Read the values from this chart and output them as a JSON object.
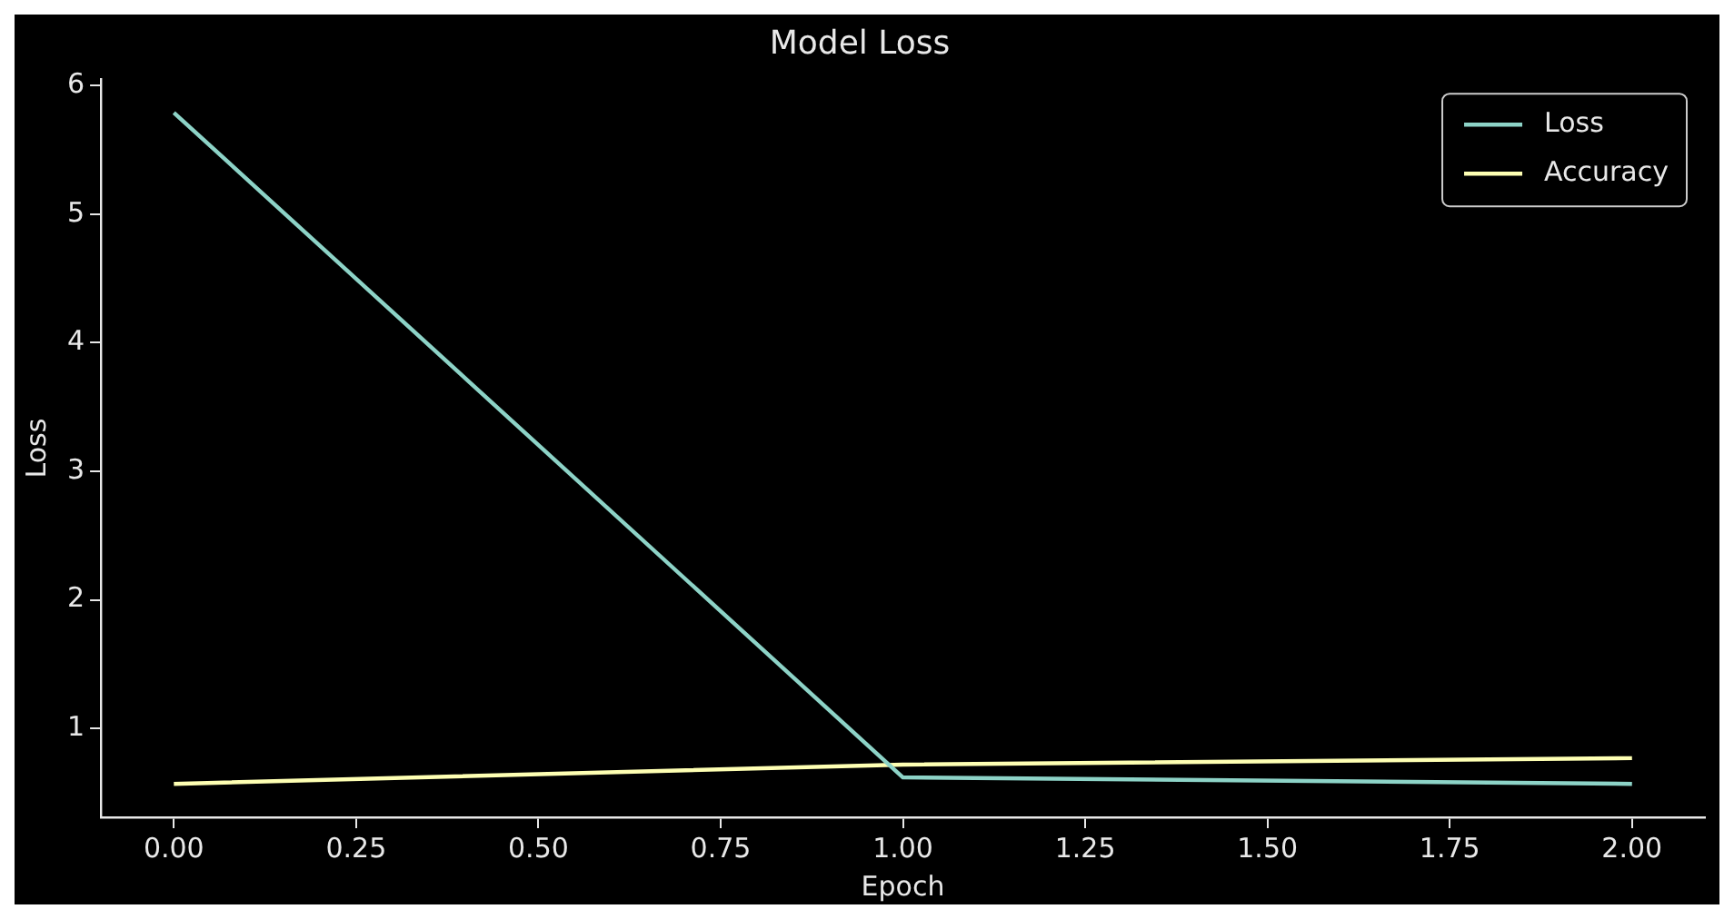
{
  "chart_data": {
    "type": "line",
    "title": "Model Loss",
    "xlabel": "Epoch",
    "ylabel": "Loss",
    "x": [
      0,
      1,
      2
    ],
    "series": [
      {
        "name": "Loss",
        "color": "#8dd3c7",
        "values": [
          5.79,
          0.62,
          0.57
        ]
      },
      {
        "name": "Accuracy",
        "color": "#feffb3",
        "values": [
          0.57,
          0.72,
          0.77
        ]
      }
    ],
    "xlim": [
      -0.1,
      2.1
    ],
    "ylim": [
      0.31,
      6.05
    ],
    "xticks": [
      {
        "value": 0,
        "label": "0.00"
      },
      {
        "value": 0.25,
        "label": "0.25"
      },
      {
        "value": 0.5,
        "label": "0.50"
      },
      {
        "value": 0.75,
        "label": "0.75"
      },
      {
        "value": 1,
        "label": "1.00"
      },
      {
        "value": 1.25,
        "label": "1.25"
      },
      {
        "value": 1.5,
        "label": "1.50"
      },
      {
        "value": 1.75,
        "label": "1.75"
      },
      {
        "value": 2,
        "label": "2.00"
      }
    ],
    "yticks": [
      1,
      2,
      3,
      4,
      5,
      6
    ],
    "grid": false,
    "legend": "top right",
    "marker": "none",
    "line_style": "solid"
  }
}
